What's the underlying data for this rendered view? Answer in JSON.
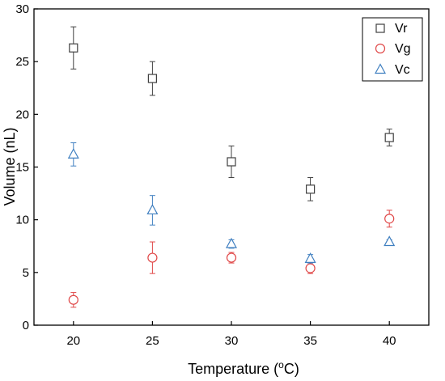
{
  "chart_data": {
    "type": "scatter",
    "x": [
      20,
      25,
      30,
      35,
      40
    ],
    "xlim": [
      17.5,
      42.5
    ],
    "ylim": [
      0,
      30
    ],
    "xticks": [
      20,
      25,
      30,
      35,
      40
    ],
    "yticks": [
      0,
      5,
      10,
      15,
      20,
      25,
      30
    ],
    "xlabel_main": "Temperature (",
    "xlabel_sup": "o",
    "xlabel_end": "C)",
    "ylabel": "Volume (nL)",
    "grid": false,
    "legend_position": "top-right",
    "series": [
      {
        "name": "Vr",
        "marker": "square",
        "color": "#404040",
        "values": [
          26.3,
          23.4,
          15.5,
          12.9,
          17.8
        ],
        "errors": [
          2.0,
          1.6,
          1.5,
          1.1,
          0.8
        ]
      },
      {
        "name": "Vg",
        "marker": "circle",
        "color": "#e04848",
        "values": [
          2.4,
          6.4,
          6.4,
          5.4,
          10.1
        ],
        "errors": [
          0.7,
          1.5,
          0.5,
          0.5,
          0.8
        ]
      },
      {
        "name": "Vc",
        "marker": "triangle",
        "color": "#3f7fc0",
        "values": [
          16.2,
          10.9,
          7.7,
          6.3,
          7.9
        ],
        "errors": [
          1.1,
          1.4,
          0.4,
          0.4,
          0.2
        ]
      }
    ]
  }
}
